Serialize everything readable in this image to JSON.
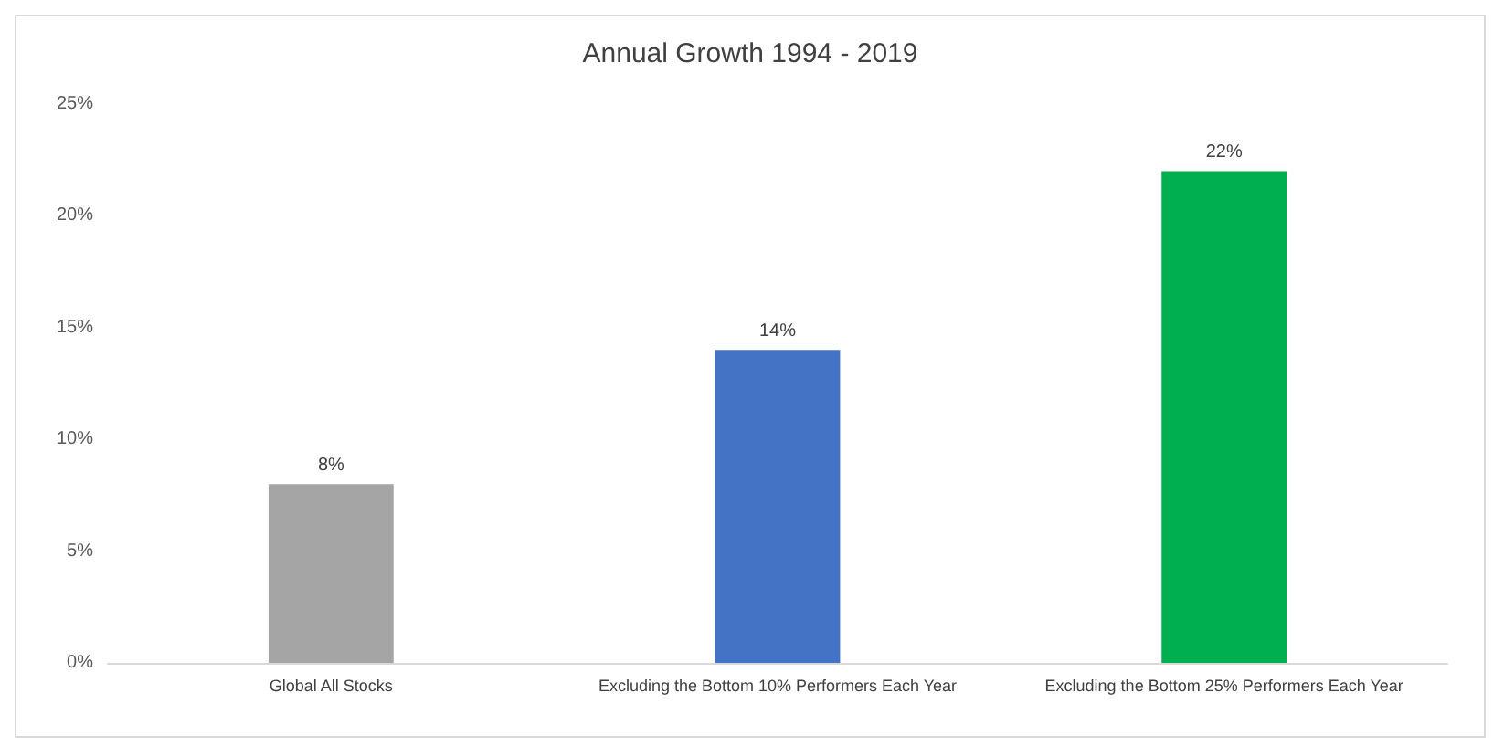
{
  "chart_data": {
    "type": "bar",
    "title": "Annual Growth 1994 - 2019",
    "categories": [
      "Global All Stocks",
      "Excluding the Bottom 10% Performers Each Year",
      "Excluding the Bottom 25% Performers Each Year"
    ],
    "values": [
      8,
      14,
      22
    ],
    "value_labels": [
      "8%",
      "14%",
      "22%"
    ],
    "colors": [
      "#a5a5a5",
      "#4472c4",
      "#00b050"
    ],
    "ylim": [
      0,
      25
    ],
    "yticks": [
      {
        "value": 0,
        "label": "0%"
      },
      {
        "value": 5,
        "label": "5%"
      },
      {
        "value": 10,
        "label": "10%"
      },
      {
        "value": 15,
        "label": "15%"
      },
      {
        "value": 20,
        "label": "20%"
      },
      {
        "value": 25,
        "label": "25%"
      }
    ],
    "grid": false
  }
}
